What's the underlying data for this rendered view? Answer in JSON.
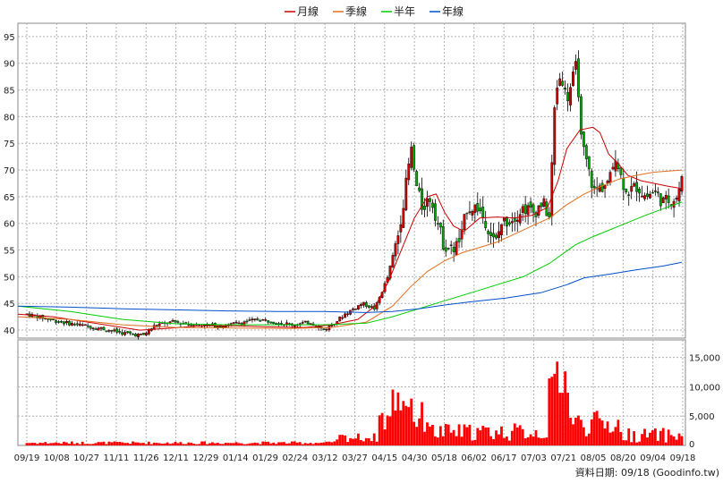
{
  "chart_data": [
    {
      "type": "candlestick",
      "title": "",
      "legend": {
        "placement": "top-center",
        "items": [
          {
            "name": "月線",
            "color": "#cc0000"
          },
          {
            "name": "季線",
            "color": "#e07020"
          },
          {
            "name": "半年",
            "color": "#00cc00"
          },
          {
            "name": "年線",
            "color": "#0050cc"
          }
        ]
      },
      "y_ticks": [
        40,
        45,
        50,
        55,
        60,
        65,
        70,
        75,
        80,
        85,
        90,
        95
      ],
      "ylim": [
        38.5,
        97.5
      ],
      "grid": true,
      "candle_colors": {
        "up": "#cc0000",
        "down": "#00aa00"
      },
      "series": [
        {
          "name": "月線",
          "points": [
            [
              0,
              43.0
            ],
            [
              40,
              42.5
            ],
            [
              80,
              41.5
            ],
            [
              120,
              40.5
            ],
            [
              140,
              40.0
            ],
            [
              170,
              40.3
            ],
            [
              210,
              40.8
            ],
            [
              250,
              40.8
            ],
            [
              290,
              40.6
            ],
            [
              330,
              40.5
            ],
            [
              360,
              41.0
            ],
            [
              390,
              42.0
            ],
            [
              410,
              44.5
            ],
            [
              425,
              49.0
            ],
            [
              440,
              55.0
            ],
            [
              455,
              61.0
            ],
            [
              470,
              65.0
            ],
            [
              480,
              65.5
            ],
            [
              490,
              62.0
            ],
            [
              500,
              59.5
            ],
            [
              512,
              58.5
            ],
            [
              530,
              61.0
            ],
            [
              550,
              61.2
            ],
            [
              570,
              61.0
            ],
            [
              590,
              61.5
            ],
            [
              608,
              63.0
            ],
            [
              620,
              68.0
            ],
            [
              630,
              74.0
            ],
            [
              645,
              77.5
            ],
            [
              660,
              78.0
            ],
            [
              668,
              77.0
            ],
            [
              678,
              73.0
            ],
            [
              690,
              71.0
            ],
            [
              700,
              69.0
            ],
            [
              715,
              68.0
            ],
            [
              730,
              67.5
            ],
            [
              745,
              67.0
            ],
            [
              762,
              66.5
            ]
          ]
        },
        {
          "name": "季線",
          "points": [
            [
              0,
              42.5
            ],
            [
              60,
              42.0
            ],
            [
              120,
              41.0
            ],
            [
              180,
              40.5
            ],
            [
              250,
              40.4
            ],
            [
              310,
              40.3
            ],
            [
              360,
              40.5
            ],
            [
              400,
              41.5
            ],
            [
              430,
              44.5
            ],
            [
              450,
              48.0
            ],
            [
              470,
              51.0
            ],
            [
              490,
              53.0
            ],
            [
              510,
              54.5
            ],
            [
              530,
              55.5
            ],
            [
              550,
              56.5
            ],
            [
              570,
              58.0
            ],
            [
              590,
              59.5
            ],
            [
              610,
              61.0
            ],
            [
              630,
              63.5
            ],
            [
              650,
              65.5
            ],
            [
              670,
              67.0
            ],
            [
              690,
              68.3
            ],
            [
              710,
              69.0
            ],
            [
              730,
              69.6
            ],
            [
              762,
              70.0
            ]
          ]
        },
        {
          "name": "半年",
          "points": [
            [
              0,
              44.5
            ],
            [
              60,
              43.5
            ],
            [
              120,
              42.0
            ],
            [
              180,
              41.2
            ],
            [
              240,
              41.0
            ],
            [
              300,
              41.0
            ],
            [
              350,
              41.0
            ],
            [
              400,
              41.3
            ],
            [
              430,
              42.5
            ],
            [
              460,
              44.0
            ],
            [
              490,
              45.5
            ],
            [
              520,
              47.0
            ],
            [
              550,
              48.5
            ],
            [
              580,
              50.0
            ],
            [
              610,
              52.5
            ],
            [
              640,
              56.0
            ],
            [
              660,
              57.5
            ],
            [
              690,
              59.5
            ],
            [
              720,
              61.5
            ],
            [
              745,
              63.0
            ],
            [
              762,
              64.0
            ]
          ]
        },
        {
          "name": "年線",
          "points": [
            [
              0,
              44.5
            ],
            [
              60,
              44.3
            ],
            [
              120,
              44.0
            ],
            [
              180,
              43.8
            ],
            [
              240,
              43.6
            ],
            [
              300,
              43.5
            ],
            [
              350,
              43.5
            ],
            [
              400,
              43.3
            ],
            [
              430,
              43.5
            ],
            [
              460,
              44.0
            ],
            [
              490,
              44.7
            ],
            [
              520,
              45.3
            ],
            [
              560,
              46.0
            ],
            [
              600,
              47.0
            ],
            [
              630,
              48.5
            ],
            [
              650,
              49.8
            ],
            [
              680,
              50.5
            ],
            [
              710,
              51.3
            ],
            [
              740,
              52.0
            ],
            [
              762,
              52.7
            ]
          ]
        }
      ],
      "x_tick_labels": [
        "09/19",
        "10/08",
        "10/27",
        "11/11",
        "11/26",
        "12/11",
        "12/29",
        "01/14",
        "01/29",
        "02/24",
        "03/12",
        "03/27",
        "04/15",
        "04/30",
        "05/18",
        "06/02",
        "06/17",
        "07/03",
        "07/21",
        "08/05",
        "08/20",
        "09/04",
        "09/18"
      ]
    },
    {
      "type": "bar",
      "title": "",
      "y_ticks": [
        5000,
        10000,
        15000
      ],
      "y_tick_labels": [
        "5,000",
        "10,000",
        "15,000"
      ],
      "ylim": [
        0,
        18000
      ],
      "grid": true,
      "bar_color": "#ff0000",
      "values_per_day": "daily volume (estimated)"
    }
  ],
  "footer": {
    "source_text": "資料日期: 09/18  (Goodinfo.tw)"
  }
}
